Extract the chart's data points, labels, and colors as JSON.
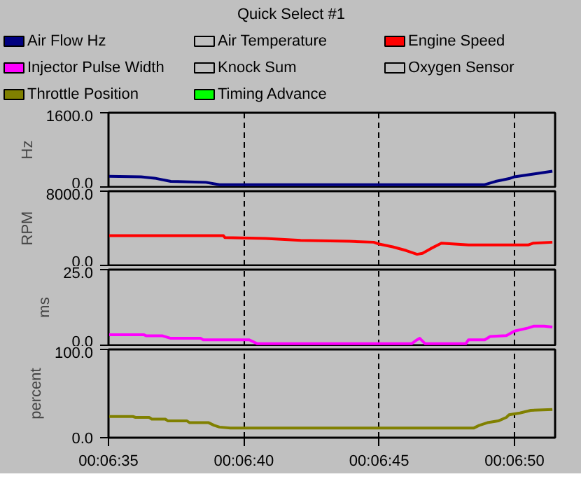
{
  "chart_data": [
    {
      "type": "line",
      "title": "Quick Select #1",
      "ylabel": "Hz",
      "legend": "top",
      "grid": "x",
      "tick_labels": "y",
      "xlim": [
        395,
        411.5
      ],
      "xticks": [
        {
          "value": 395,
          "label": null
        },
        {
          "value": 400,
          "label": null
        },
        {
          "value": 405,
          "label": null
        },
        {
          "value": 410,
          "label": null
        }
      ],
      "ylim": [
        0,
        1600
      ],
      "yticks": [
        {
          "value": 0,
          "label": "0.0"
        },
        {
          "value": 1600,
          "label": "1600.0"
        }
      ],
      "series": [
        {
          "name": "Air Flow Hz",
          "color": "#000080",
          "x": [
            395.0,
            396.2,
            396.7,
            397.3,
            398.6,
            399.1,
            408.9,
            409.3,
            409.8,
            410.0,
            410.7,
            411.4
          ],
          "values": [
            230,
            220,
            190,
            120,
            100,
            50,
            50,
            120,
            180,
            220,
            280,
            340
          ]
        },
        {
          "name": "Air Temperature",
          "color": "#c0c0c0"
        }
      ]
    },
    {
      "type": "line",
      "ylabel": "RPM",
      "legend": "top",
      "grid": "x",
      "tick_labels": "y",
      "xlim": [
        395,
        411.5
      ],
      "xticks": [
        {
          "value": 395,
          "label": null
        },
        {
          "value": 400,
          "label": null
        },
        {
          "value": 405,
          "label": null
        },
        {
          "value": 410,
          "label": null
        }
      ],
      "ylim": [
        0,
        8000
      ],
      "yticks": [
        {
          "value": 0,
          "label": "0.0"
        },
        {
          "value": 8000,
          "label": "8000.0"
        }
      ],
      "series": [
        {
          "name": "Engine Speed",
          "color": "#ff0000",
          "x": [
            395.0,
            399.25,
            399.3,
            400.8,
            402.1,
            403.9,
            404.8,
            405.0,
            405.5,
            406.0,
            406.4,
            406.6,
            406.9,
            407.3,
            408.3,
            410.5,
            410.7,
            411.4
          ],
          "values": [
            3200,
            3200,
            3000,
            2900,
            2700,
            2600,
            2500,
            2300,
            2000,
            1600,
            1200,
            1300,
            1800,
            2400,
            2200,
            2200,
            2400,
            2500
          ]
        }
      ]
    },
    {
      "type": "line",
      "ylabel": "ms",
      "legend": "top",
      "grid": "x",
      "tick_labels": "y",
      "xlim": [
        395,
        411.5
      ],
      "xticks": [
        {
          "value": 395,
          "label": null
        },
        {
          "value": 400,
          "label": null
        },
        {
          "value": 405,
          "label": null
        },
        {
          "value": 410,
          "label": null
        }
      ],
      "ylim": [
        0,
        25
      ],
      "yticks": [
        {
          "value": 0,
          "label": "0.0"
        },
        {
          "value": 25,
          "label": "25.0"
        }
      ],
      "series": [
        {
          "name": "Injector Pulse Width",
          "color": "#ff00ff",
          "x": [
            395.0,
            396.3,
            396.4,
            397.0,
            397.3,
            398.4,
            398.5,
            400.2,
            400.5,
            406.2,
            406.4,
            406.5,
            406.7,
            408.2,
            408.3,
            408.9,
            409.1,
            409.7,
            410.0,
            410.5,
            410.7,
            411.1,
            411.4
          ],
          "values": [
            3.5,
            3.5,
            3.1,
            3.1,
            2.3,
            2.3,
            1.8,
            1.8,
            0.5,
            0.5,
            1.8,
            2.3,
            0.5,
            0.5,
            1.8,
            1.8,
            2.9,
            3.2,
            4.7,
            5.7,
            6.3,
            6.3,
            6.0
          ]
        },
        {
          "name": "Knock Sum",
          "color": "#c0c0c0"
        },
        {
          "name": "Oxygen Sensor",
          "color": "#c0c0c0"
        }
      ]
    },
    {
      "type": "line",
      "ylabel": "percent",
      "legend": "top",
      "grid": "x",
      "xlim": [
        395,
        411.5
      ],
      "xticks": [
        {
          "value": 395,
          "label": "00:06:35"
        },
        {
          "value": 400,
          "label": "00:06:40"
        },
        {
          "value": 405,
          "label": "00:06:45"
        },
        {
          "value": 410,
          "label": "00:06:50"
        }
      ],
      "ylim": [
        0,
        100
      ],
      "yticks": [
        {
          "value": 0,
          "label": "0.0"
        },
        {
          "value": 100,
          "label": "100.0"
        }
      ],
      "series": [
        {
          "name": "Throttle Position",
          "color": "#808000",
          "x": [
            395.0,
            395.9,
            396.0,
            396.5,
            396.6,
            397.1,
            397.2,
            397.9,
            398.0,
            398.7,
            398.9,
            399.1,
            399.5,
            408.5,
            408.7,
            409.0,
            409.4,
            409.7,
            409.8,
            410.2,
            410.6,
            411.4
          ],
          "values": [
            24,
            24,
            23,
            23,
            21,
            21,
            19,
            19,
            17,
            17,
            14,
            12,
            11,
            11,
            14,
            17,
            19,
            23,
            26,
            28,
            31,
            32
          ]
        },
        {
          "name": "Timing Advance",
          "color": "#00ff00"
        }
      ]
    }
  ]
}
